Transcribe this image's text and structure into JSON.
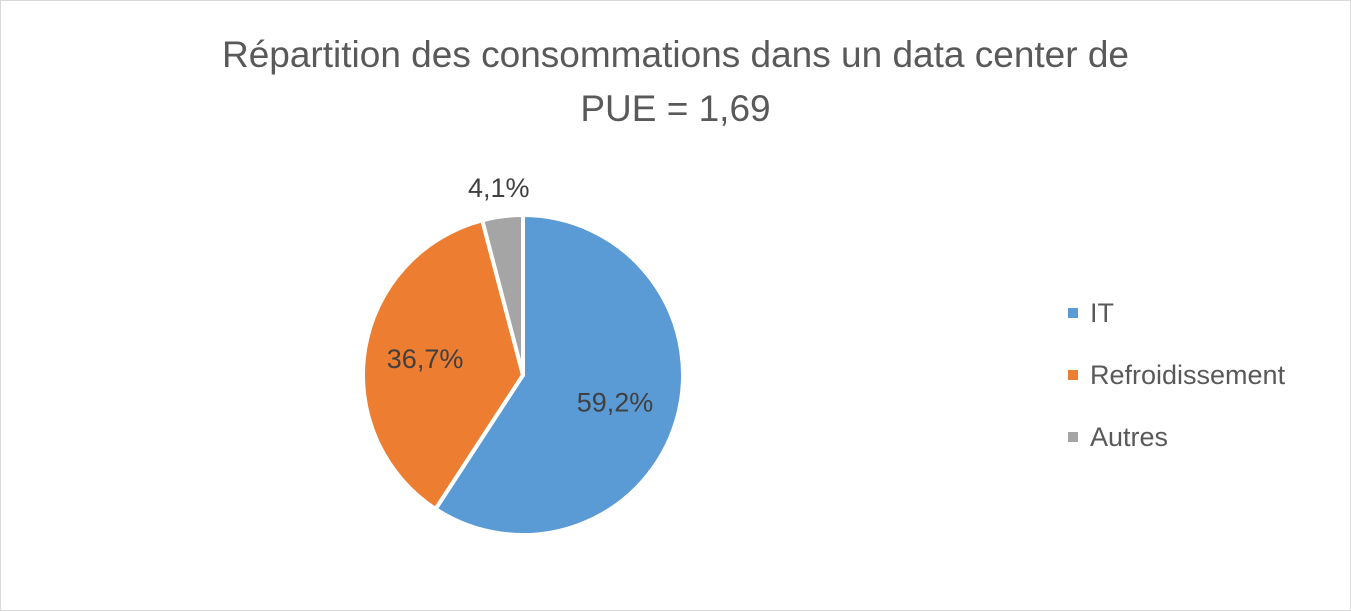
{
  "chart_data": {
    "type": "pie",
    "title_lines": [
      "Répartition des consommations dans un data center de",
      "PUE = 1,69"
    ],
    "categories": [
      "IT",
      "Refroidissement",
      "Autres"
    ],
    "values": [
      59.2,
      36.7,
      4.1
    ],
    "data_labels": [
      "59,2%",
      "36,7%",
      "4,1%"
    ],
    "colors": [
      "#5b9bd5",
      "#ed7d31",
      "#a5a5a5"
    ],
    "legend_position": "right",
    "start_angle_deg": 0,
    "direction": "clockwise"
  }
}
